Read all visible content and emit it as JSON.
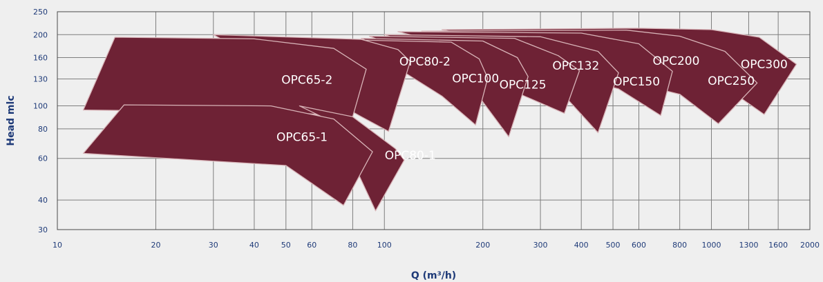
{
  "chart_data": {
    "type": "area",
    "title": "",
    "xlabel": "Q (m³/h)",
    "ylabel": "Head mlc",
    "x_scale": "log",
    "y_scale": "log",
    "xlim": [
      10,
      2000
    ],
    "ylim": [
      30,
      250
    ],
    "x_ticks": [
      10,
      20,
      30,
      40,
      50,
      60,
      80,
      100,
      200,
      300,
      400,
      500,
      600,
      800,
      1000,
      1300,
      1600,
      2000
    ],
    "y_ticks": [
      30,
      40,
      60,
      80,
      100,
      130,
      160,
      200,
      250
    ],
    "grid": true,
    "fill_color": "#6e2235",
    "edge_color": "#d8b4b8",
    "regions": [
      {
        "name": "OPC300",
        "label_at": [
          1450,
          150
        ],
        "outline": [
          [
            150,
            210
          ],
          [
            600,
            213
          ],
          [
            1000,
            210
          ],
          [
            1400,
            195
          ],
          [
            1820,
            150
          ],
          [
            1450,
            92
          ],
          [
            1150,
            115
          ]
        ]
      },
      {
        "name": "OPC250",
        "label_at": [
          1150,
          128
        ],
        "outline": [
          [
            130,
            207
          ],
          [
            550,
            209
          ],
          [
            800,
            197
          ],
          [
            1100,
            170
          ],
          [
            1380,
            125
          ],
          [
            1050,
            84
          ],
          [
            800,
            112
          ]
        ]
      },
      {
        "name": "OPC200",
        "label_at": [
          780,
          155
        ],
        "outline": [
          [
            110,
            206
          ],
          [
            400,
            203
          ],
          [
            600,
            183
          ],
          [
            760,
            140
          ],
          [
            700,
            91
          ],
          [
            520,
            118
          ]
        ]
      },
      {
        "name": "OPC150",
        "label_at": [
          590,
          127
        ],
        "outline": [
          [
            100,
            200
          ],
          [
            300,
            196
          ],
          [
            450,
            170
          ],
          [
            520,
            138
          ],
          [
            450,
            77
          ],
          [
            360,
            108
          ]
        ]
      },
      {
        "name": "OPC132",
        "label_at": [
          385,
          148
        ],
        "outline": [
          [
            90,
            197
          ],
          [
            250,
            193
          ],
          [
            340,
            163
          ],
          [
            395,
            141
          ],
          [
            355,
            93
          ],
          [
            260,
            112
          ]
        ]
      },
      {
        "name": "OPC125",
        "label_at": [
          265,
          123
        ],
        "outline": [
          [
            85,
            193
          ],
          [
            200,
            188
          ],
          [
            255,
            160
          ],
          [
            275,
            133
          ],
          [
            240,
            74
          ],
          [
            195,
            109
          ]
        ]
      },
      {
        "name": "OPC100",
        "label_at": [
          190,
          131
        ],
        "outline": [
          [
            80,
            190
          ],
          [
            160,
            186
          ],
          [
            195,
            158
          ],
          [
            207,
            131
          ],
          [
            190,
            83
          ],
          [
            150,
            110
          ]
        ]
      },
      {
        "name": "OPC80-2",
        "label_at": [
          133,
          154
        ],
        "outline": [
          [
            30,
            200
          ],
          [
            85,
            191
          ],
          [
            110,
            173
          ],
          [
            120,
            154
          ],
          [
            103,
            78
          ],
          [
            85,
            90
          ]
        ]
      },
      {
        "name": "OPC65-2",
        "label_at": [
          58,
          129
        ],
        "outline": [
          [
            15,
            195
          ],
          [
            40,
            192
          ],
          [
            70,
            175
          ],
          [
            88,
            143
          ],
          [
            80,
            90
          ],
          [
            50,
            94
          ],
          [
            12,
            96
          ]
        ]
      },
      {
        "name": "OPC80-1",
        "label_at": [
          120,
          62
        ],
        "outline": [
          [
            55,
            100
          ],
          [
            80,
            90
          ],
          [
            108,
            66
          ],
          [
            115,
            59
          ],
          [
            94,
            36
          ],
          [
            80,
            58
          ],
          [
            70,
            85
          ]
        ]
      },
      {
        "name": "OPC65-1",
        "label_at": [
          56,
          74
        ],
        "outline": [
          [
            16,
            101
          ],
          [
            45,
            100
          ],
          [
            70,
            88
          ],
          [
            92,
            64
          ],
          [
            75,
            38
          ],
          [
            50,
            56
          ],
          [
            12,
            63
          ]
        ]
      }
    ]
  }
}
